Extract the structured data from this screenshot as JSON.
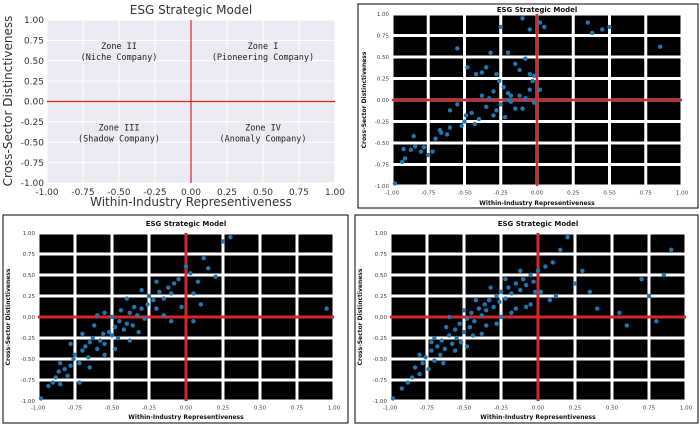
{
  "colors": {
    "axis_line": "#d62728",
    "point": "#1f77b4",
    "grid_light": "#ffffff",
    "panel_bg_light": "#eaeaf2",
    "panel_bg_dark": "#000000"
  },
  "chart_data": [
    {
      "type": "scatter",
      "title": "ESG Strategic Model",
      "xlabel": "Within-Industry Representiveness",
      "ylabel": "Cross-Sector Distinctiveness",
      "xlim": [
        -1.0,
        1.0
      ],
      "ylim": [
        -1.0,
        1.0
      ],
      "x_ticks": [
        "-1.00",
        "-0.75",
        "-0.50",
        "-0.25",
        "0.00",
        "0.25",
        "0.50",
        "0.75",
        "1.00"
      ],
      "y_ticks": [
        "-1.00",
        "-0.75",
        "-0.50",
        "-0.25",
        "0.00",
        "0.25",
        "0.50",
        "0.75",
        "1.00"
      ],
      "grid": true,
      "zones": [
        {
          "name": "Zone II",
          "label": "(Niche Company)",
          "cx": -0.5,
          "cy": 0.5
        },
        {
          "name": "Zone I",
          "label": "(Pioneering Company)",
          "cx": 0.5,
          "cy": 0.5
        },
        {
          "name": "Zone III",
          "label": "(Shadow Company)",
          "cx": -0.5,
          "cy": -0.5
        },
        {
          "name": "Zone IV",
          "label": "(Anomaly Company)",
          "cx": 0.5,
          "cy": -0.5
        }
      ],
      "points": []
    },
    {
      "type": "scatter",
      "title": "ESG Strategic Model",
      "xlabel": "Within-Industry Representiveness",
      "ylabel": "Cross-Sector Distinctiveness",
      "xlim": [
        -1.0,
        1.0
      ],
      "ylim": [
        -1.0,
        1.0
      ],
      "x_ticks": [
        "-1.00",
        "-0.75",
        "-0.50",
        "-0.25",
        "0.00",
        "0.25",
        "0.50",
        "0.75",
        "1.00"
      ],
      "y_ticks": [
        "-1.00",
        "-0.75",
        "-0.50",
        "-0.25",
        "0.00",
        "0.25",
        "0.50",
        "0.75",
        "1.00"
      ],
      "grid": true,
      "points": [
        [
          -0.98,
          -0.97
        ],
        [
          -0.93,
          -0.72
        ],
        [
          -0.91,
          -0.68
        ],
        [
          -0.92,
          -0.57
        ],
        [
          -0.87,
          -0.58
        ],
        [
          -0.84,
          -0.54
        ],
        [
          -0.8,
          -0.6
        ],
        [
          -0.78,
          -0.55
        ],
        [
          -0.75,
          -0.64
        ],
        [
          -0.72,
          -0.6
        ],
        [
          -0.85,
          -0.42
        ],
        [
          -0.7,
          -0.45
        ],
        [
          -0.67,
          -0.35
        ],
        [
          -0.66,
          -0.38
        ],
        [
          -0.62,
          -0.4
        ],
        [
          -0.6,
          -0.32
        ],
        [
          -0.6,
          -0.12
        ],
        [
          -0.55,
          -0.05
        ],
        [
          -0.52,
          -0.3
        ],
        [
          -0.5,
          -0.25
        ],
        [
          -0.49,
          -0.18
        ],
        [
          -0.45,
          -0.15
        ],
        [
          -0.43,
          -0.28
        ],
        [
          -0.4,
          -0.22
        ],
        [
          -0.38,
          0.05
        ],
        [
          -0.35,
          -0.08
        ],
        [
          -0.33,
          0.02
        ],
        [
          -0.3,
          -0.18
        ],
        [
          -0.28,
          -0.12
        ],
        [
          -0.25,
          -0.05
        ],
        [
          -0.22,
          -0.2
        ],
        [
          -0.2,
          0.0
        ],
        [
          -0.18,
          0.05
        ],
        [
          -0.15,
          -0.1
        ],
        [
          -0.12,
          0.05
        ],
        [
          -0.1,
          -0.1
        ],
        [
          -0.08,
          0.02
        ],
        [
          -0.05,
          0.12
        ],
        [
          -0.03,
          0.22
        ],
        [
          -0.02,
          -0.03
        ],
        [
          -0.55,
          0.6
        ],
        [
          -0.48,
          0.38
        ],
        [
          -0.42,
          0.3
        ],
        [
          -0.38,
          0.32
        ],
        [
          -0.35,
          0.38
        ],
        [
          -0.28,
          0.3
        ],
        [
          -0.26,
          0.22
        ],
        [
          -0.23,
          0.15
        ],
        [
          -0.32,
          0.55
        ],
        [
          -0.2,
          0.55
        ],
        [
          -0.15,
          0.42
        ],
        [
          -0.12,
          0.35
        ],
        [
          -0.08,
          0.48
        ],
        [
          -0.05,
          0.3
        ],
        [
          -0.02,
          0.28
        ],
        [
          0.02,
          0.12
        ],
        [
          -0.1,
          0.95
        ],
        [
          -0.25,
          0.85
        ],
        [
          -0.05,
          0.82
        ],
        [
          0.02,
          0.9
        ],
        [
          0.05,
          0.85
        ],
        [
          0.35,
          0.9
        ],
        [
          0.38,
          0.78
        ],
        [
          0.45,
          0.82
        ],
        [
          0.5,
          0.85
        ],
        [
          0.85,
          0.62
        ],
        [
          -0.02,
          -0.02
        ],
        [
          -0.18,
          -0.02
        ],
        [
          -0.2,
          0.08
        ],
        [
          -0.3,
          0.1
        ]
      ]
    },
    {
      "type": "scatter",
      "title": "ESG Strategic Model",
      "xlabel": "Within-Industry Representiveness",
      "ylabel": "Cross-Sector Distinctiveness",
      "xlim": [
        -1.0,
        1.0
      ],
      "ylim": [
        -1.0,
        1.0
      ],
      "x_ticks": [
        "-1.00",
        "-0.75",
        "-0.50",
        "-0.25",
        "0.00",
        "0.25",
        "0.50",
        "0.75",
        "1.00"
      ],
      "y_ticks": [
        "-1.00",
        "-0.75",
        "-0.50",
        "-0.25",
        "0.00",
        "0.25",
        "0.50",
        "0.75",
        "1.00"
      ],
      "grid": true,
      "points": [
        [
          -0.98,
          -0.97
        ],
        [
          -0.93,
          -0.82
        ],
        [
          -0.9,
          -0.78
        ],
        [
          -0.88,
          -0.72
        ],
        [
          -0.86,
          -0.65
        ],
        [
          -0.85,
          -0.55
        ],
        [
          -0.82,
          -0.62
        ],
        [
          -0.8,
          -0.7
        ],
        [
          -0.78,
          -0.58
        ],
        [
          -0.76,
          -0.5
        ],
        [
          -0.75,
          -0.45
        ],
        [
          -0.72,
          -0.55
        ],
        [
          -0.7,
          -0.4
        ],
        [
          -0.68,
          -0.35
        ],
        [
          -0.66,
          -0.48
        ],
        [
          -0.65,
          -0.3
        ],
        [
          -0.63,
          -0.25
        ],
        [
          -0.6,
          -0.38
        ],
        [
          -0.58,
          -0.28
        ],
        [
          -0.56,
          -0.2
        ],
        [
          -0.55,
          -0.32
        ],
        [
          -0.52,
          -0.18
        ],
        [
          -0.5,
          -0.22
        ],
        [
          -0.48,
          -0.12
        ],
        [
          -0.46,
          -0.25
        ],
        [
          -0.45,
          -0.05
        ],
        [
          -0.42,
          -0.15
        ],
        [
          -0.4,
          -0.08
        ],
        [
          -0.38,
          0.05
        ],
        [
          -0.36,
          -0.1
        ],
        [
          -0.35,
          0.12
        ],
        [
          -0.33,
          0.02
        ],
        [
          -0.3,
          0.1
        ],
        [
          -0.28,
          -0.02
        ],
        [
          -0.26,
          0.15
        ],
        [
          -0.25,
          0.25
        ],
        [
          -0.22,
          0.2
        ],
        [
          -0.2,
          0.1
        ],
        [
          -0.18,
          0.3
        ],
        [
          -0.15,
          0.22
        ],
        [
          -0.12,
          0.35
        ],
        [
          -0.1,
          0.28
        ],
        [
          -0.08,
          0.4
        ],
        [
          -0.05,
          0.45
        ],
        [
          -0.03,
          0.12
        ],
        [
          0.0,
          0.6
        ],
        [
          0.03,
          0.52
        ],
        [
          0.05,
          0.28
        ],
        [
          0.08,
          0.42
        ],
        [
          0.12,
          0.7
        ],
        [
          0.15,
          0.58
        ],
        [
          0.2,
          0.48
        ],
        [
          0.25,
          0.9
        ],
        [
          0.3,
          0.95
        ],
        [
          -0.55,
          0.05
        ],
        [
          -0.62,
          -0.1
        ],
        [
          -0.7,
          -0.2
        ],
        [
          -0.78,
          -0.32
        ],
        [
          -0.5,
          0.0
        ],
        [
          -0.44,
          0.08
        ],
        [
          -0.6,
          0.02
        ],
        [
          -0.4,
          0.22
        ],
        [
          -0.3,
          0.32
        ],
        [
          -0.2,
          0.42
        ],
        [
          -0.15,
          0.02
        ],
        [
          -0.1,
          -0.05
        ],
        [
          0.05,
          -0.05
        ],
        [
          0.95,
          0.1
        ],
        [
          0.1,
          0.15
        ],
        [
          -0.85,
          -0.8
        ],
        [
          -0.72,
          -0.78
        ],
        [
          -0.65,
          -0.6
        ],
        [
          -0.55,
          -0.45
        ],
        [
          -0.48,
          -0.38
        ],
        [
          -0.38,
          -0.28
        ],
        [
          -0.32,
          -0.18
        ]
      ]
    },
    {
      "type": "scatter",
      "title": "ESG Strategic Model",
      "xlabel": "Within-Industry Representiveness",
      "ylabel": "Cross-Sector Distinctiveness",
      "xlim": [
        -1.0,
        1.0
      ],
      "ylim": [
        -1.0,
        1.0
      ],
      "x_ticks": [
        "-1.00",
        "-0.75",
        "-0.50",
        "-0.25",
        "0.00",
        "0.25",
        "0.50",
        "0.75",
        "1.00"
      ],
      "y_ticks": [
        "-1.00",
        "-0.75",
        "-0.50",
        "-0.25",
        "0.00",
        "0.25",
        "0.50",
        "0.75",
        "1.00"
      ],
      "grid": true,
      "points": [
        [
          -0.98,
          -0.97
        ],
        [
          -0.92,
          -0.85
        ],
        [
          -0.88,
          -0.78
        ],
        [
          -0.85,
          -0.72
        ],
        [
          -0.83,
          -0.6
        ],
        [
          -0.8,
          -0.68
        ],
        [
          -0.78,
          -0.55
        ],
        [
          -0.76,
          -0.48
        ],
        [
          -0.74,
          -0.62
        ],
        [
          -0.72,
          -0.4
        ],
        [
          -0.7,
          -0.52
        ],
        [
          -0.68,
          -0.35
        ],
        [
          -0.66,
          -0.45
        ],
        [
          -0.65,
          -0.28
        ],
        [
          -0.63,
          -0.38
        ],
        [
          -0.6,
          -0.22
        ],
        [
          -0.58,
          -0.32
        ],
        [
          -0.56,
          -0.15
        ],
        [
          -0.55,
          -0.25
        ],
        [
          -0.53,
          -0.08
        ],
        [
          -0.5,
          -0.18
        ],
        [
          -0.48,
          -0.02
        ],
        [
          -0.46,
          -0.12
        ],
        [
          -0.45,
          0.05
        ],
        [
          -0.43,
          -0.05
        ],
        [
          -0.4,
          0.1
        ],
        [
          -0.38,
          0.02
        ],
        [
          -0.36,
          0.15
        ],
        [
          -0.35,
          0.08
        ],
        [
          -0.33,
          0.2
        ],
        [
          -0.3,
          0.12
        ],
        [
          -0.28,
          0.25
        ],
        [
          -0.26,
          0.18
        ],
        [
          -0.25,
          0.3
        ],
        [
          -0.22,
          0.22
        ],
        [
          -0.2,
          0.35
        ],
        [
          -0.18,
          0.28
        ],
        [
          -0.15,
          0.4
        ],
        [
          -0.12,
          0.32
        ],
        [
          -0.1,
          0.45
        ],
        [
          -0.08,
          0.38
        ],
        [
          -0.05,
          0.5
        ],
        [
          -0.03,
          0.42
        ],
        [
          0.0,
          0.55
        ],
        [
          0.02,
          0.3
        ],
        [
          0.05,
          0.6
        ],
        [
          0.08,
          0.2
        ],
        [
          0.1,
          0.65
        ],
        [
          0.15,
          0.8
        ],
        [
          0.2,
          0.95
        ],
        [
          0.3,
          0.55
        ],
        [
          0.35,
          0.3
        ],
        [
          0.4,
          0.1
        ],
        [
          0.55,
          0.05
        ],
        [
          0.7,
          0.45
        ],
        [
          0.75,
          0.25
        ],
        [
          0.8,
          -0.05
        ],
        [
          0.85,
          0.5
        ],
        [
          0.6,
          -0.1
        ],
        [
          0.9,
          0.8
        ],
        [
          -0.6,
          0.0
        ],
        [
          -0.5,
          0.08
        ],
        [
          -0.42,
          0.2
        ],
        [
          -0.32,
          0.35
        ],
        [
          -0.22,
          0.45
        ],
        [
          -0.12,
          0.55
        ],
        [
          -0.7,
          -0.25
        ],
        [
          -0.62,
          -0.12
        ],
        [
          -0.52,
          -0.3
        ],
        [
          -0.44,
          -0.22
        ],
        [
          -0.35,
          -0.1
        ],
        [
          -0.25,
          0.0
        ],
        [
          -0.15,
          0.1
        ],
        [
          -0.05,
          0.15
        ],
        [
          -0.8,
          -0.45
        ],
        [
          -0.72,
          -0.3
        ],
        [
          -0.64,
          -0.55
        ],
        [
          -0.56,
          -0.4
        ],
        [
          -0.48,
          -0.35
        ],
        [
          -0.38,
          -0.2
        ],
        [
          -0.28,
          -0.08
        ],
        [
          -0.18,
          0.05
        ],
        [
          -0.08,
          0.12
        ],
        [
          0.12,
          0.25
        ],
        [
          0.25,
          0.4
        ],
        [
          -0.02,
          0.3
        ]
      ]
    }
  ]
}
